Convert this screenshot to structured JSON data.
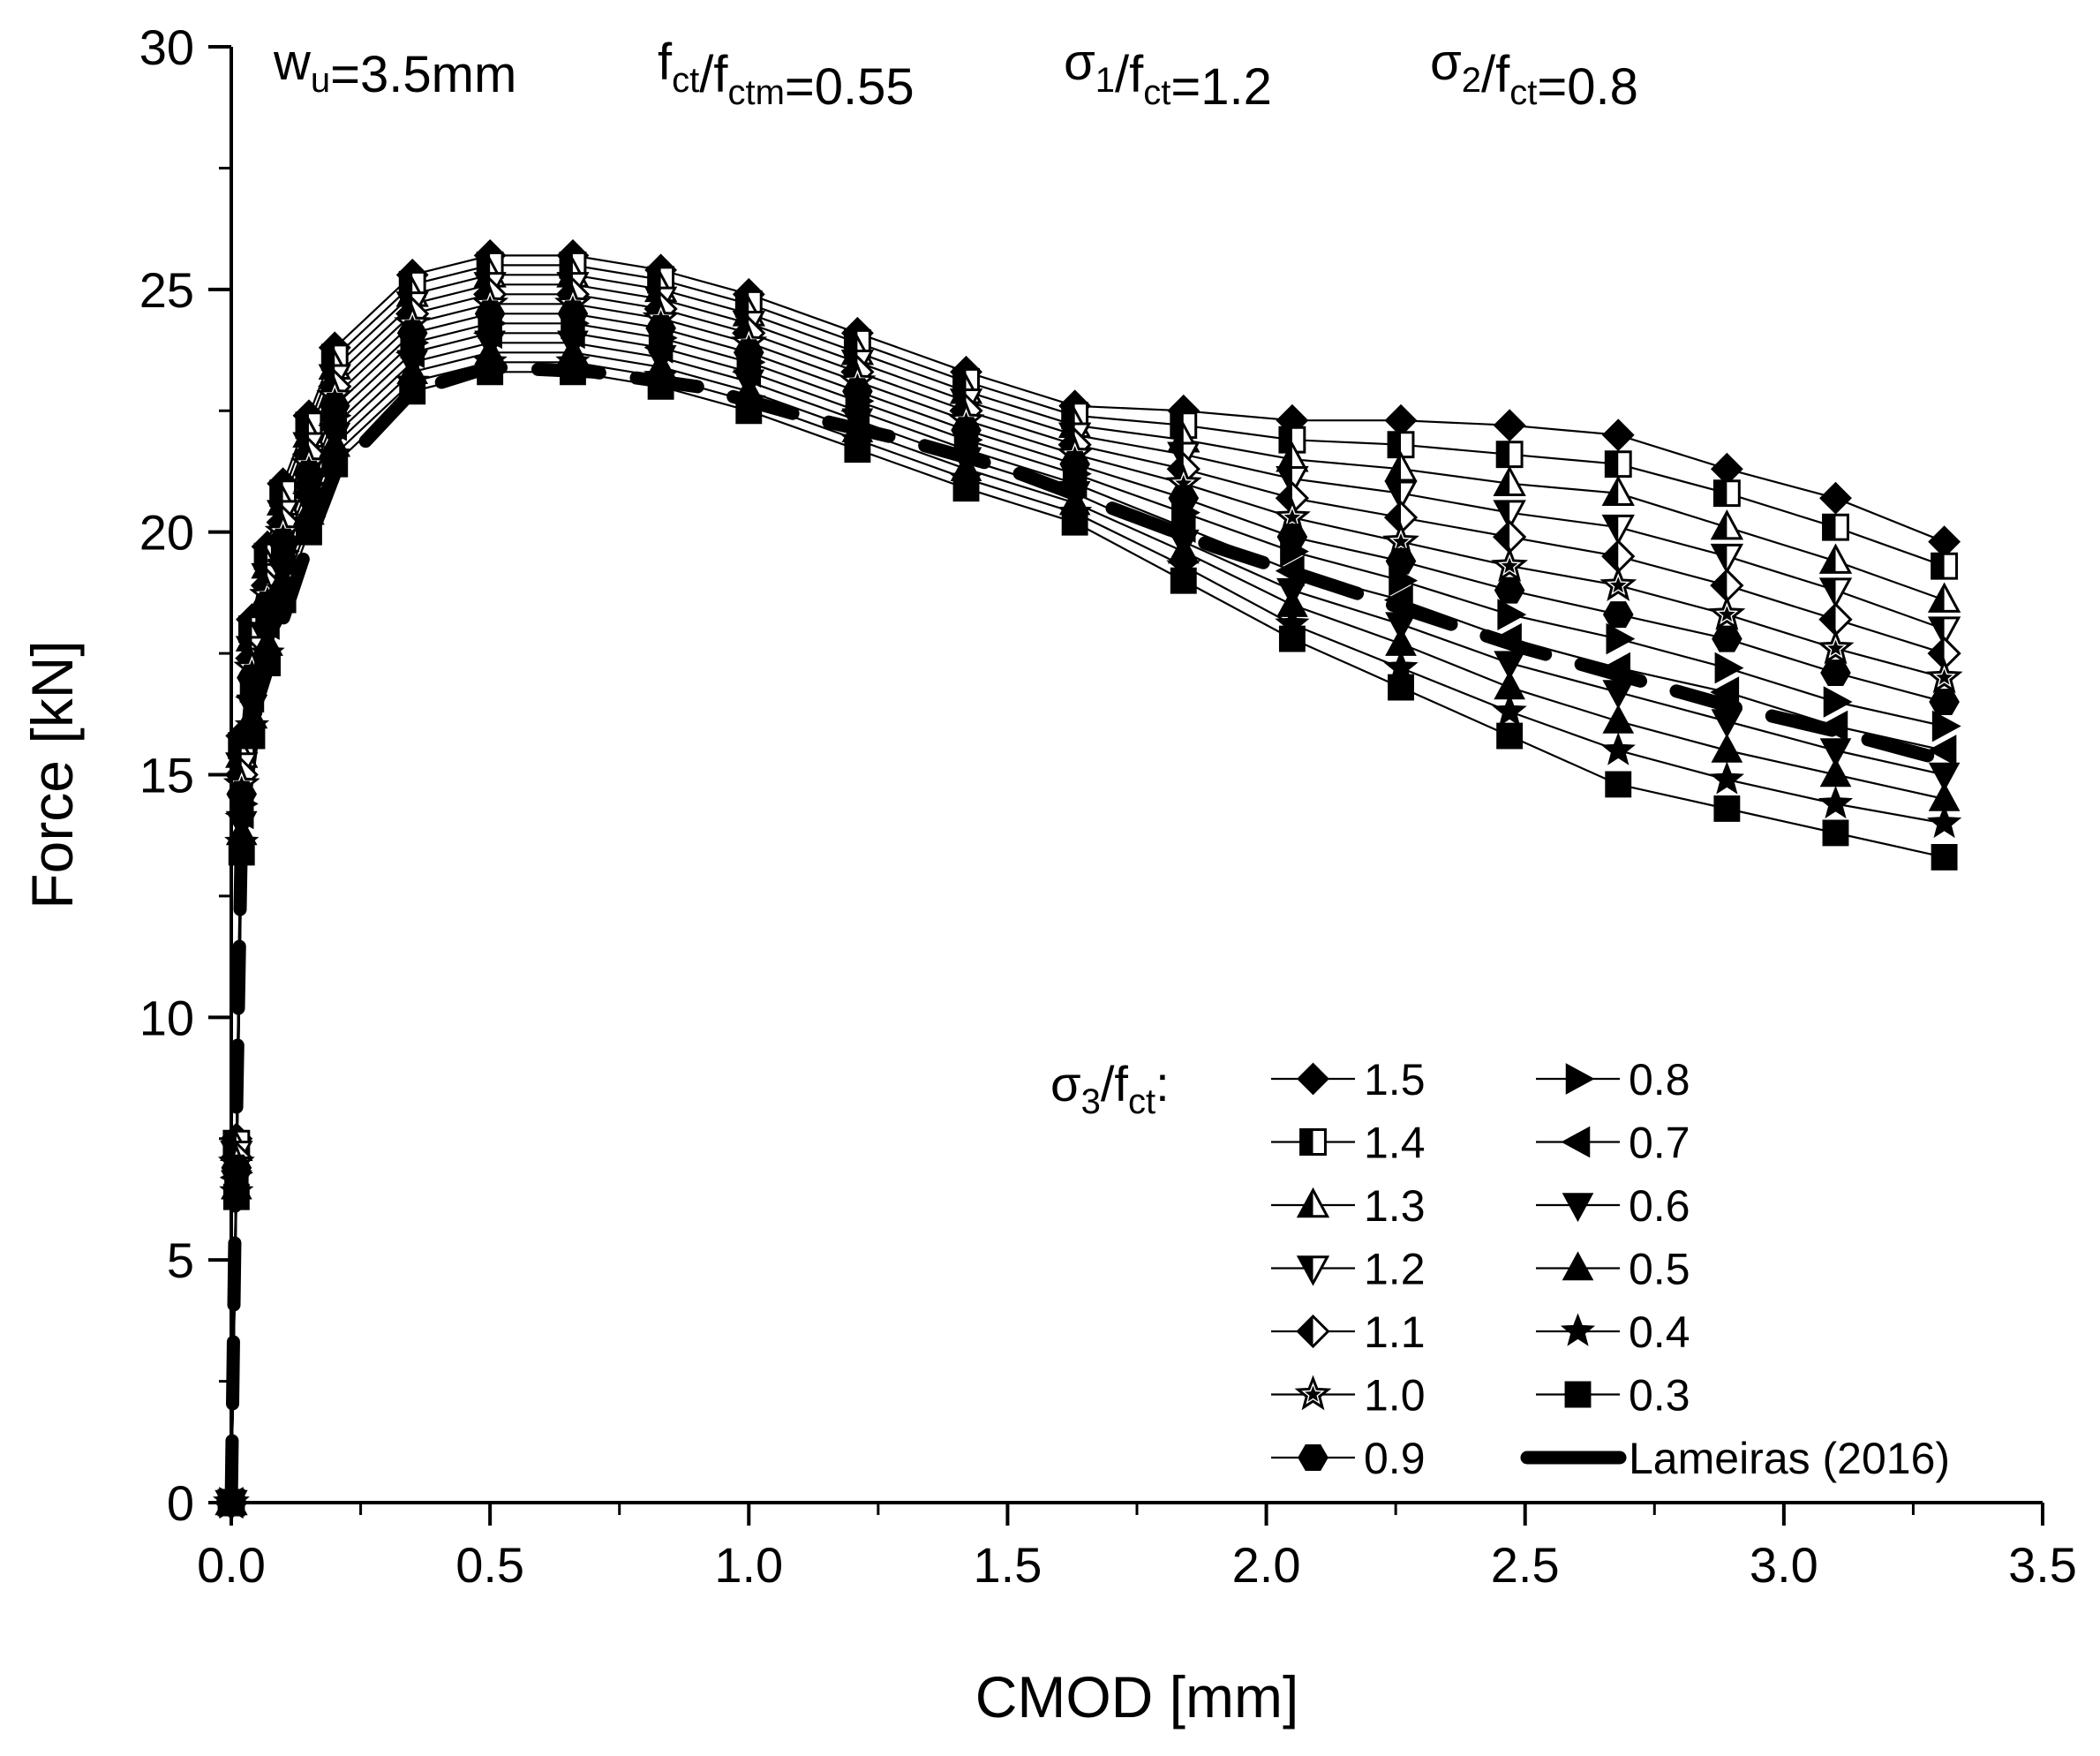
{
  "chart_data": {
    "type": "line",
    "title": "",
    "xlabel": "CMOD [mm]",
    "ylabel": "Force [kN]",
    "xlim": [
      0.0,
      3.5
    ],
    "ylim": [
      0,
      30
    ],
    "xticks": [
      "0.0",
      "0.5",
      "1.0",
      "1.5",
      "2.0",
      "2.5",
      "3.0",
      "3.5"
    ],
    "yticks": [
      "0",
      "5",
      "10",
      "15",
      "20",
      "25",
      "30"
    ],
    "grid": false,
    "legend_position": "bottom-right",
    "legend_title": {
      "sym": "σ",
      "sub1": "3",
      "mid": "/f",
      "sub2": "ct",
      "end": ":"
    },
    "parameters": [
      {
        "base": "w",
        "sub": "u",
        "rest": "=3.5mm"
      },
      {
        "base": "f",
        "sub": "ct",
        "base2": "/f",
        "sub2": "ctm",
        "rest": "=0.55"
      },
      {
        "base": "σ",
        "sub": "1",
        "base2": "/f",
        "sub2": "ct",
        "rest": "=1.2"
      },
      {
        "base": "σ",
        "sub": "2",
        "base2": "/f",
        "sub2": "ct",
        "rest": "=0.8"
      }
    ],
    "x": [
      0.0,
      0.01,
      0.02,
      0.04,
      0.07,
      0.1,
      0.15,
      0.2,
      0.35,
      0.5,
      0.66,
      0.83,
      1.0,
      1.21,
      1.42,
      1.63,
      1.84,
      2.05,
      2.26,
      2.47,
      2.68,
      2.89,
      3.1,
      3.31
    ],
    "series": [
      {
        "name": "1.5",
        "marker": "diamond",
        "fill": "full",
        "values": [
          0.0,
          7.5,
          15.8,
          18.2,
          19.7,
          21.0,
          22.4,
          23.8,
          25.3,
          25.7,
          25.7,
          25.4,
          24.9,
          24.1,
          23.3,
          22.6,
          22.5,
          22.3,
          22.3,
          22.2,
          22.0,
          21.3,
          20.7,
          19.8
        ]
      },
      {
        "name": "1.4",
        "marker": "square",
        "fill": "half",
        "values": [
          0.0,
          7.4,
          15.6,
          18.0,
          19.5,
          20.8,
          22.2,
          23.6,
          25.1,
          25.5,
          25.5,
          25.2,
          24.7,
          23.9,
          23.1,
          22.4,
          22.2,
          21.9,
          21.8,
          21.6,
          21.4,
          20.8,
          20.1,
          19.3
        ]
      },
      {
        "name": "1.3",
        "marker": "triangle-up",
        "fill": "half",
        "values": [
          0.0,
          7.3,
          15.4,
          17.8,
          19.3,
          20.6,
          22.0,
          23.4,
          24.9,
          25.3,
          25.3,
          25.0,
          24.5,
          23.7,
          22.9,
          22.2,
          21.9,
          21.5,
          21.3,
          21.0,
          20.8,
          20.1,
          19.4,
          18.6
        ]
      },
      {
        "name": "1.2",
        "marker": "triangle-down",
        "fill": "half",
        "values": [
          0.0,
          7.2,
          15.2,
          17.6,
          19.1,
          20.4,
          21.8,
          23.2,
          24.7,
          25.1,
          25.1,
          24.8,
          24.3,
          23.5,
          22.7,
          22.0,
          21.6,
          21.1,
          20.8,
          20.4,
          20.1,
          19.5,
          18.8,
          18.0
        ]
      },
      {
        "name": "1.1",
        "marker": "diamond",
        "fill": "half",
        "values": [
          0.0,
          7.1,
          15.0,
          17.4,
          18.9,
          20.2,
          21.6,
          23.0,
          24.5,
          24.9,
          24.9,
          24.6,
          24.1,
          23.3,
          22.5,
          21.8,
          21.3,
          20.7,
          20.3,
          19.9,
          19.5,
          18.9,
          18.2,
          17.5
        ]
      },
      {
        "name": "1.0",
        "marker": "star",
        "fill": "half",
        "values": [
          0.0,
          7.0,
          14.8,
          17.2,
          18.7,
          20.0,
          21.4,
          22.8,
          24.3,
          24.7,
          24.7,
          24.4,
          23.9,
          23.1,
          22.3,
          21.6,
          21.0,
          20.3,
          19.8,
          19.3,
          18.9,
          18.3,
          17.6,
          17.0
        ]
      },
      {
        "name": "0.9",
        "marker": "hexagon",
        "fill": "full",
        "values": [
          0.0,
          6.9,
          14.6,
          17.0,
          18.5,
          19.8,
          21.2,
          22.6,
          24.1,
          24.5,
          24.5,
          24.2,
          23.7,
          22.9,
          22.1,
          21.4,
          20.7,
          19.9,
          19.4,
          18.8,
          18.3,
          17.8,
          17.1,
          16.5
        ]
      },
      {
        "name": "0.8",
        "marker": "triangle-right",
        "fill": "full",
        "values": [
          0.0,
          6.8,
          14.4,
          16.8,
          18.3,
          19.6,
          21.0,
          22.4,
          23.9,
          24.3,
          24.3,
          24.0,
          23.5,
          22.7,
          21.9,
          21.2,
          20.4,
          19.6,
          19.0,
          18.3,
          17.8,
          17.2,
          16.5,
          16.0
        ]
      },
      {
        "name": "0.7",
        "marker": "triangle-left",
        "fill": "full",
        "values": [
          0.0,
          6.7,
          14.2,
          16.6,
          18.1,
          19.4,
          20.8,
          22.2,
          23.7,
          24.1,
          24.1,
          23.8,
          23.3,
          22.5,
          21.7,
          21.0,
          20.1,
          19.2,
          18.6,
          17.8,
          17.2,
          16.7,
          16.0,
          15.5
        ]
      },
      {
        "name": "0.6",
        "marker": "triangle-down",
        "fill": "full",
        "values": [
          0.0,
          6.6,
          14.0,
          16.4,
          17.9,
          19.2,
          20.6,
          22.0,
          23.5,
          23.9,
          23.9,
          23.6,
          23.1,
          22.3,
          21.5,
          20.8,
          19.8,
          18.8,
          18.1,
          17.3,
          16.7,
          16.1,
          15.5,
          15.0
        ]
      },
      {
        "name": "0.5",
        "marker": "triangle-up",
        "fill": "full",
        "values": [
          0.0,
          6.5,
          13.8,
          16.2,
          17.7,
          19.0,
          20.4,
          21.8,
          23.3,
          23.7,
          23.7,
          23.4,
          22.9,
          22.1,
          21.3,
          20.6,
          19.6,
          18.5,
          17.7,
          16.8,
          16.1,
          15.5,
          15.0,
          14.5
        ]
      },
      {
        "name": "0.4",
        "marker": "star",
        "fill": "full",
        "values": [
          0.0,
          6.4,
          13.6,
          16.0,
          17.5,
          18.8,
          20.2,
          21.6,
          23.1,
          23.5,
          23.5,
          23.2,
          22.7,
          21.9,
          21.1,
          20.4,
          19.3,
          18.1,
          17.2,
          16.3,
          15.5,
          14.9,
          14.4,
          14.0
        ]
      },
      {
        "name": "0.3",
        "marker": "square",
        "fill": "full",
        "values": [
          0.0,
          6.3,
          13.4,
          15.8,
          17.3,
          18.6,
          20.0,
          21.4,
          22.9,
          23.3,
          23.3,
          23.0,
          22.5,
          21.7,
          20.9,
          20.2,
          19.0,
          17.8,
          16.8,
          15.8,
          14.8,
          14.3,
          13.8,
          13.3
        ]
      }
    ],
    "reference_series": {
      "name": "Lameiras (2016)",
      "style": "thick-dashed",
      "x": [
        0.0,
        0.01,
        0.02,
        0.05,
        0.1,
        0.15,
        0.2,
        0.35,
        0.5,
        0.7,
        0.9,
        1.1,
        1.3,
        1.5,
        1.7,
        1.9,
        2.1,
        2.3,
        2.5,
        2.7,
        2.9,
        3.1,
        3.31
      ],
      "y": [
        0.0,
        8.0,
        14.0,
        16.5,
        18.2,
        19.8,
        21.2,
        22.9,
        23.4,
        23.3,
        23.0,
        22.4,
        21.9,
        21.3,
        20.5,
        19.7,
        19.0,
        18.3,
        17.6,
        17.0,
        16.4,
        15.9,
        15.3
      ]
    }
  }
}
